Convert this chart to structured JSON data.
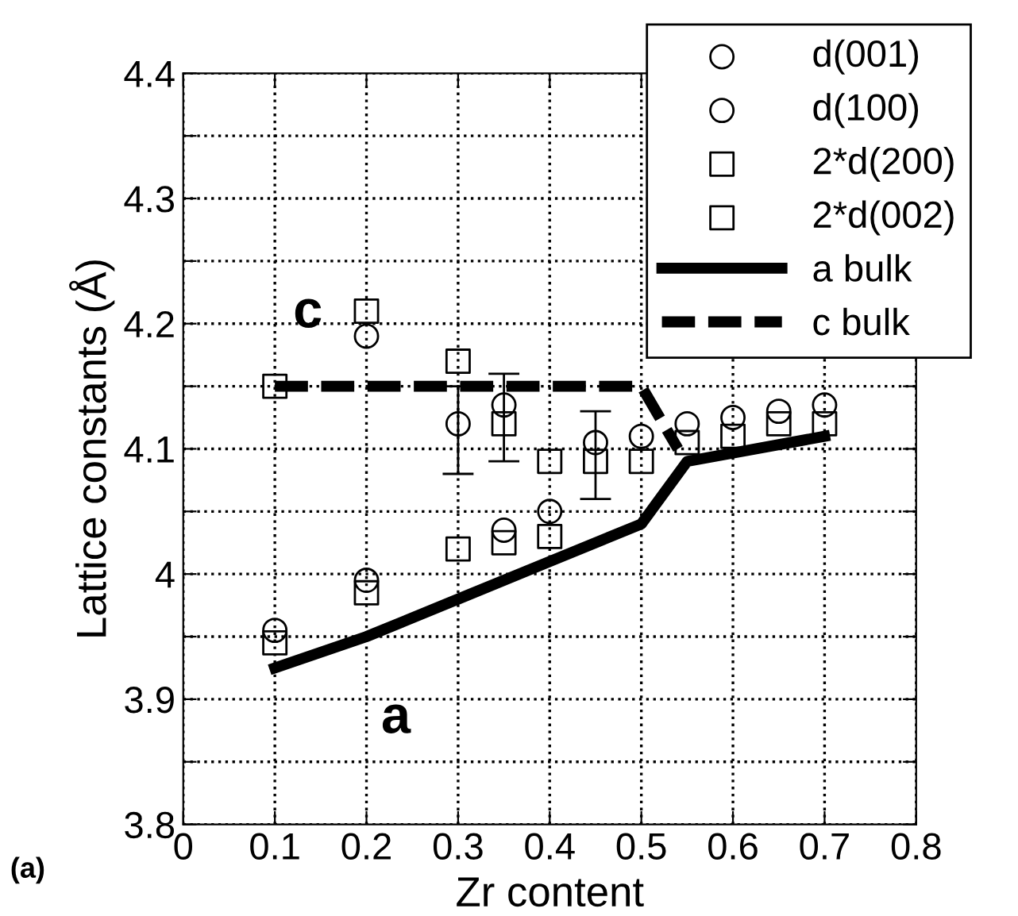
{
  "chart_data": {
    "type": "scatter",
    "xlabel": "Zr content",
    "ylabel": "Lattice constants (Å)",
    "xlim": [
      0,
      0.8
    ],
    "xticks": [
      0,
      0.1,
      0.2,
      0.3,
      0.4,
      0.5,
      0.6,
      0.7,
      0.8
    ],
    "ylim": [
      3.8,
      4.4
    ],
    "yticks": [
      3.8,
      {
        "value": 3.85,
        "label": null
      },
      3.9,
      {
        "value": 3.95,
        "label": null
      },
      4,
      {
        "value": 4.05,
        "label": null
      },
      4.1,
      {
        "value": 4.15,
        "label": null
      },
      4.2,
      {
        "value": 4.25,
        "label": null
      },
      4.3,
      {
        "value": 4.35,
        "label": null
      },
      4.4
    ],
    "grid": true,
    "legend": "top right",
    "series": [
      {
        "name": "d(001)",
        "marker": "circle",
        "color": "#000000",
        "x": [
          0.2,
          0.3,
          0.35,
          0.45,
          0.5
        ],
        "values": [
          4.19,
          4.12,
          4.135,
          4.105,
          4.11
        ],
        "errors": [
          null,
          [
            4.08,
            4.15
          ],
          [
            4.09,
            4.16
          ],
          [
            4.06,
            4.13
          ],
          null
        ]
      },
      {
        "name": "d(100)",
        "marker": "circle",
        "color": "#000000",
        "x": [
          0.1,
          0.2,
          0.35,
          0.4,
          0.55,
          0.6,
          0.65,
          0.7
        ],
        "values": [
          3.955,
          3.995,
          4.035,
          4.05,
          4.12,
          4.125,
          4.13,
          4.135
        ]
      },
      {
        "name": "2*d(200)",
        "marker": "square",
        "color": "#000000",
        "x": [
          0.1,
          0.2,
          0.3,
          0.35,
          0.4,
          0.55,
          0.6,
          0.65,
          0.7
        ],
        "values": [
          3.945,
          3.985,
          4.02,
          4.025,
          4.03,
          4.105,
          4.11,
          4.12,
          4.12
        ]
      },
      {
        "name": "2*d(002)",
        "marker": "square",
        "color": "#000000",
        "x": [
          0.1,
          0.2,
          0.3,
          0.35,
          0.4,
          0.45,
          0.5
        ],
        "values": [
          4.15,
          4.21,
          4.17,
          4.12,
          4.09,
          4.09,
          4.09
        ]
      },
      {
        "name": "a bulk",
        "type": "line",
        "line_style": "solid",
        "color": "#000000",
        "x": [
          0.1,
          0.2,
          0.3,
          0.4,
          0.5,
          0.55,
          0.7
        ],
        "values": [
          3.925,
          3.95,
          3.98,
          4.01,
          4.04,
          4.09,
          4.11
        ]
      },
      {
        "name": "c bulk",
        "type": "line",
        "line_style": "dashed",
        "color": "#000000",
        "x": [
          0.1,
          0.5,
          0.54
        ],
        "values": [
          4.15,
          4.15,
          4.1
        ]
      }
    ],
    "annotations": [
      "c",
      "a",
      "(a)"
    ]
  }
}
